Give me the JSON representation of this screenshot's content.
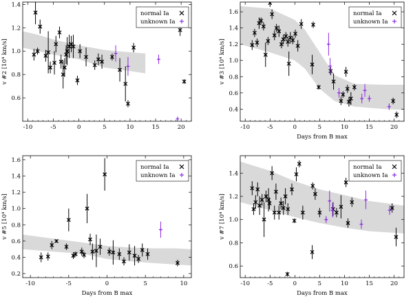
{
  "figure": {
    "background": "#ffffff",
    "band_color": "#d9d9d9",
    "normal_color": "#000000",
    "unknown_color": "#8a2be2"
  },
  "chart_data": [
    {
      "type": "scatter",
      "id": "v2",
      "ylabel": "v #2 [10⁴ km/s]",
      "xlabel": "",
      "xlim": [
        -11,
        22
      ],
      "ylim": [
        0.4,
        1.42
      ],
      "xticks": [
        -10,
        -5,
        0,
        5,
        10,
        15,
        20
      ],
      "yticks": [
        0.6,
        0.8,
        1.0,
        1.2,
        1.4
      ],
      "legend": [
        "normal Ia",
        "unknown Ia"
      ],
      "band": {
        "x": [
          -11,
          -8,
          -5,
          0,
          5,
          10,
          13
        ],
        "lo": [
          1.03,
          1.0,
          0.97,
          0.93,
          0.86,
          0.83,
          0.81
        ],
        "hi": [
          1.17,
          1.14,
          1.1,
          1.05,
          1.01,
          0.99,
          0.98
        ]
      },
      "normal": [
        {
          "x": -8.8,
          "y": 0.97,
          "e": 0.05
        },
        {
          "x": -8.5,
          "y": 1.33,
          "e": 0.1
        },
        {
          "x": -8.1,
          "y": 1.0,
          "e": 0.03
        },
        {
          "x": -7.6,
          "y": 1.21,
          "e": 0.06
        },
        {
          "x": -6.5,
          "y": 0.96,
          "e": 0.05
        },
        {
          "x": -6.0,
          "y": 0.99,
          "e": 0.18
        },
        {
          "x": -5.6,
          "y": 0.86,
          "e": 0.05
        },
        {
          "x": -4.8,
          "y": 0.9,
          "e": 0.1
        },
        {
          "x": -4.5,
          "y": 1.06,
          "e": 0.07
        },
        {
          "x": -3.8,
          "y": 1.16,
          "e": 0.05
        },
        {
          "x": -3.5,
          "y": 0.91,
          "e": 0.06
        },
        {
          "x": -3.1,
          "y": 0.8,
          "e": 0.12
        },
        {
          "x": -2.8,
          "y": 0.86,
          "e": 0.08
        },
        {
          "x": -2.5,
          "y": 0.97,
          "e": 0.08
        },
        {
          "x": -2.3,
          "y": 1.0,
          "e": 0.12
        },
        {
          "x": -1.9,
          "y": 1.04,
          "e": 0.1
        },
        {
          "x": -1.5,
          "y": 1.06,
          "e": 0.07
        },
        {
          "x": -1.1,
          "y": 1.04,
          "e": 0.1
        },
        {
          "x": -0.3,
          "y": 0.75,
          "e": 0.04
        },
        {
          "x": 0.2,
          "y": 1.0,
          "e": 0.06
        },
        {
          "x": 1.4,
          "y": 0.95,
          "e": 0.08
        },
        {
          "x": 3.1,
          "y": 0.88,
          "e": 0.04
        },
        {
          "x": 3.8,
          "y": 0.93,
          "e": 0.05
        },
        {
          "x": 4.5,
          "y": 0.91,
          "e": 0.06
        },
        {
          "x": 6.5,
          "y": 0.95,
          "e": 0.03
        },
        {
          "x": 8.0,
          "y": 0.84,
          "e": 0.1
        },
        {
          "x": 9.1,
          "y": 0.72,
          "e": 0.15
        },
        {
          "x": 9.6,
          "y": 0.55,
          "e": 0.03
        },
        {
          "x": 10.7,
          "y": 1.03,
          "e": 0.04
        },
        {
          "x": 19.8,
          "y": 1.18,
          "e": 0.05
        },
        {
          "x": 20.6,
          "y": 0.74,
          "e": 0.02
        }
      ],
      "unknown": [
        {
          "x": 7.2,
          "y": 0.98,
          "e": 0.07
        },
        {
          "x": 9.6,
          "y": 0.87,
          "e": 0.08
        },
        {
          "x": 15.6,
          "y": 0.93,
          "e": 0.04
        },
        {
          "x": 19.3,
          "y": 0.42,
          "e": 0.02
        }
      ]
    },
    {
      "type": "scatter",
      "id": "v3",
      "ylabel": "v #3 [10⁴ km/s]",
      "xlabel": "Days from B max",
      "xlim": [
        -11,
        22
      ],
      "ylim": [
        0.25,
        1.72
      ],
      "xticks": [
        -10,
        -5,
        0,
        5,
        10,
        15,
        20
      ],
      "yticks": [
        0.4,
        0.6,
        0.8,
        1.0,
        1.2,
        1.4,
        1.6
      ],
      "legend": [
        "normal Ia",
        "unknown Ia"
      ],
      "band": {
        "x": [
          -11,
          -5,
          0,
          2,
          5,
          8,
          12,
          18,
          22
        ],
        "lo": [
          1.2,
          1.1,
          1.0,
          0.9,
          0.65,
          0.5,
          0.43,
          0.4,
          0.39
        ],
        "hi": [
          1.67,
          1.64,
          1.5,
          1.38,
          1.1,
          0.82,
          0.71,
          0.7,
          0.7
        ]
      },
      "normal": [
        {
          "x": -8.6,
          "y": 1.19,
          "e": 0.06
        },
        {
          "x": -8.1,
          "y": 1.34,
          "e": 0.05
        },
        {
          "x": -7.6,
          "y": 1.22,
          "e": 0.05
        },
        {
          "x": -7.2,
          "y": 1.46,
          "e": 0.07
        },
        {
          "x": -6.8,
          "y": 1.49,
          "e": 0.04
        },
        {
          "x": -6.3,
          "y": 1.42,
          "e": 0.05
        },
        {
          "x": -5.9,
          "y": 1.07,
          "e": 0.15
        },
        {
          "x": -5.4,
          "y": 1.24,
          "e": 0.05
        },
        {
          "x": -5.0,
          "y": 1.71,
          "e": 0.05
        },
        {
          "x": -4.6,
          "y": 1.57,
          "e": 0.06
        },
        {
          "x": -4.1,
          "y": 1.31,
          "e": 0.06
        },
        {
          "x": -3.7,
          "y": 1.4,
          "e": 0.05
        },
        {
          "x": -3.2,
          "y": 1.36,
          "e": 0.07
        },
        {
          "x": -2.7,
          "y": 1.2,
          "e": 0.05
        },
        {
          "x": -2.3,
          "y": 1.26,
          "e": 0.06
        },
        {
          "x": -1.8,
          "y": 1.3,
          "e": 0.05
        },
        {
          "x": -1.4,
          "y": 1.23,
          "e": 0.06
        },
        {
          "x": -0.9,
          "y": 1.28,
          "e": 0.07
        },
        {
          "x": -0.4,
          "y": 1.25,
          "e": 0.05
        },
        {
          "x": 0.1,
          "y": 1.33,
          "e": 0.05
        },
        {
          "x": 0.6,
          "y": 1.18,
          "e": 0.07
        },
        {
          "x": 1.3,
          "y": 1.45,
          "e": 0.06
        },
        {
          "x": -1.2,
          "y": 0.96,
          "e": 0.15
        },
        {
          "x": 3.5,
          "y": 0.95,
          "e": 0.12
        },
        {
          "x": 3.7,
          "y": 1.44,
          "e": 0.04
        },
        {
          "x": 4.8,
          "y": 0.67,
          "e": 0.03
        },
        {
          "x": 7.2,
          "y": 0.87,
          "e": 0.05
        },
        {
          "x": 7.8,
          "y": 0.74,
          "e": 0.1
        },
        {
          "x": 9.3,
          "y": 0.5,
          "e": 0.05
        },
        {
          "x": 9.7,
          "y": 0.58,
          "e": 0.04
        },
        {
          "x": 10.3,
          "y": 0.86,
          "e": 0.06
        },
        {
          "x": 10.6,
          "y": 0.65,
          "e": 0.05
        },
        {
          "x": 10.9,
          "y": 0.49,
          "e": 0.06
        },
        {
          "x": 11.3,
          "y": 0.53,
          "e": 0.08
        },
        {
          "x": 12.0,
          "y": 0.67,
          "e": 0.04
        },
        {
          "x": 19.8,
          "y": 0.5,
          "e": 0.04
        },
        {
          "x": 20.5,
          "y": 0.33,
          "e": 0.04
        }
      ],
      "unknown": [
        {
          "x": 6.8,
          "y": 1.2,
          "e": 0.14
        },
        {
          "x": 7.1,
          "y": 0.93,
          "e": 0.1
        },
        {
          "x": 8.9,
          "y": 0.6,
          "e": 0.06
        },
        {
          "x": 13.5,
          "y": 0.53,
          "e": 0.06
        },
        {
          "x": 14.1,
          "y": 0.63,
          "e": 0.08
        },
        {
          "x": 15.0,
          "y": 0.53,
          "e": 0.04
        },
        {
          "x": 19.0,
          "y": 0.43,
          "e": 0.04
        }
      ]
    },
    {
      "type": "scatter",
      "id": "v5",
      "ylabel": "v #5 [10⁴ km/s]",
      "xlabel": "Days from B max",
      "xlim": [
        -11,
        11
      ],
      "ylim": [
        0.15,
        1.65
      ],
      "xticks": [
        -10,
        -5,
        0,
        5,
        10
      ],
      "yticks": [
        0.2,
        0.4,
        0.6,
        0.8,
        1.0,
        1.2,
        1.4,
        1.6
      ],
      "legend": [
        "normal Ia",
        "unknown Ia"
      ],
      "band": {
        "x": [
          -11,
          -7,
          -3,
          0,
          3,
          6,
          9,
          11
        ],
        "lo": [
          0.5,
          0.47,
          0.44,
          0.38,
          0.35,
          0.33,
          0.31,
          0.3
        ],
        "hi": [
          0.68,
          0.63,
          0.58,
          0.54,
          0.52,
          0.51,
          0.51,
          0.5
        ]
      },
      "normal": [
        {
          "x": -8.6,
          "y": 0.4,
          "e": 0.06
        },
        {
          "x": -7.7,
          "y": 0.41,
          "e": 0.05
        },
        {
          "x": -7.2,
          "y": 0.55,
          "e": 0.05
        },
        {
          "x": -6.6,
          "y": 0.6,
          "e": 0.02
        },
        {
          "x": -5.3,
          "y": 0.53,
          "e": 0.04
        },
        {
          "x": -5.0,
          "y": 0.86,
          "e": 0.14
        },
        {
          "x": -4.4,
          "y": 0.42,
          "e": 0.04
        },
        {
          "x": -4.1,
          "y": 0.44,
          "e": 0.03
        },
        {
          "x": -3.3,
          "y": 0.47,
          "e": 0.05
        },
        {
          "x": -3.0,
          "y": 0.43,
          "e": 0.04
        },
        {
          "x": -2.6,
          "y": 1.0,
          "e": 0.18
        },
        {
          "x": -2.2,
          "y": 0.62,
          "e": 0.07
        },
        {
          "x": -1.9,
          "y": 0.47,
          "e": 0.1
        },
        {
          "x": -1.4,
          "y": 0.48,
          "e": 0.2
        },
        {
          "x": -0.9,
          "y": 0.53,
          "e": 0.1
        },
        {
          "x": -0.3,
          "y": 1.42,
          "e": 0.2
        },
        {
          "x": 0.3,
          "y": 0.47,
          "e": 0.05
        },
        {
          "x": 0.8,
          "y": 0.46,
          "e": 0.15
        },
        {
          "x": 1.6,
          "y": 0.44,
          "e": 0.07
        },
        {
          "x": 2.2,
          "y": 0.35,
          "e": 0.05
        },
        {
          "x": 2.9,
          "y": 0.46,
          "e": 0.1
        },
        {
          "x": 3.6,
          "y": 0.42,
          "e": 0.12
        },
        {
          "x": 4.1,
          "y": 0.38,
          "e": 0.05
        },
        {
          "x": 4.6,
          "y": 0.49,
          "e": 0.08
        },
        {
          "x": 5.3,
          "y": 0.44,
          "e": 0.07
        },
        {
          "x": 9.2,
          "y": 0.33,
          "e": 0.04
        }
      ],
      "unknown": [
        {
          "x": 7.0,
          "y": 0.74,
          "e": 0.1
        }
      ]
    },
    {
      "type": "scatter",
      "id": "v7",
      "ylabel": "v #7 [10⁴ km/s]",
      "xlabel": "Days from B max",
      "xlim": [
        -11,
        22
      ],
      "ylim": [
        0.5,
        1.55
      ],
      "xticks": [
        -10,
        -5,
        0,
        5,
        10,
        15,
        20
      ],
      "yticks": [
        0.6,
        0.8,
        1.0,
        1.2,
        1.4
      ],
      "legend": [
        "normal Ia",
        "unknown Ia"
      ],
      "band": {
        "x": [
          -11,
          -5,
          0,
          5,
          10,
          15,
          22
        ],
        "lo": [
          1.15,
          1.08,
          1.02,
          0.97,
          0.93,
          0.9,
          0.88
        ],
        "hi": [
          1.5,
          1.42,
          1.33,
          1.26,
          1.21,
          1.16,
          1.12
        ]
      },
      "normal": [
        {
          "x": -8.6,
          "y": 1.27,
          "e": 0.06
        },
        {
          "x": -8.3,
          "y": 1.09,
          "e": 0.05
        },
        {
          "x": -7.9,
          "y": 1.15,
          "e": 0.06
        },
        {
          "x": -7.5,
          "y": 1.26,
          "e": 0.06
        },
        {
          "x": -7.1,
          "y": 1.12,
          "e": 0.08
        },
        {
          "x": -6.6,
          "y": 1.17,
          "e": 0.05
        },
        {
          "x": -6.2,
          "y": 1.0,
          "e": 0.15
        },
        {
          "x": -5.8,
          "y": 1.2,
          "e": 0.05
        },
        {
          "x": -5.3,
          "y": 1.17,
          "e": 0.1
        },
        {
          "x": -5.1,
          "y": 1.14,
          "e": 0.05
        },
        {
          "x": -4.6,
          "y": 1.4,
          "e": 0.06
        },
        {
          "x": -4.1,
          "y": 1.06,
          "e": 0.06
        },
        {
          "x": -3.8,
          "y": 1.24,
          "e": 0.07
        },
        {
          "x": -3.2,
          "y": 1.06,
          "e": 0.06
        },
        {
          "x": -2.8,
          "y": 1.14,
          "e": 0.05
        },
        {
          "x": -2.3,
          "y": 1.1,
          "e": 0.06
        },
        {
          "x": -1.9,
          "y": 1.2,
          "e": 0.07
        },
        {
          "x": -1.4,
          "y": 1.09,
          "e": 0.05
        },
        {
          "x": -0.6,
          "y": 1.26,
          "e": 0.05
        },
        {
          "x": -0.1,
          "y": 0.99,
          "e": 0.02
        },
        {
          "x": 0.3,
          "y": 1.39,
          "e": 0.06
        },
        {
          "x": 0.9,
          "y": 1.48,
          "e": 0.03
        },
        {
          "x": -1.5,
          "y": 0.53,
          "e": 0.02
        },
        {
          "x": 1.6,
          "y": 1.06,
          "e": 0.06
        },
        {
          "x": 3.5,
          "y": 0.72,
          "e": 0.06
        },
        {
          "x": 3.6,
          "y": 1.29,
          "e": 0.03
        },
        {
          "x": 4.1,
          "y": 1.22,
          "e": 0.05
        },
        {
          "x": 5.0,
          "y": 1.06,
          "e": 0.04
        },
        {
          "x": 7.7,
          "y": 1.09,
          "e": 0.06
        },
        {
          "x": 8.4,
          "y": 1.06,
          "e": 0.04
        },
        {
          "x": 9.3,
          "y": 1.11,
          "e": 0.1
        },
        {
          "x": 10.3,
          "y": 1.32,
          "e": 0.04
        },
        {
          "x": 10.7,
          "y": 0.97,
          "e": 0.04
        },
        {
          "x": 11.5,
          "y": 1.15,
          "e": 0.04
        },
        {
          "x": 19.6,
          "y": 1.1,
          "e": 0.04
        },
        {
          "x": 20.4,
          "y": 0.85,
          "e": 0.08
        }
      ],
      "unknown": [
        {
          "x": 6.3,
          "y": 1.0,
          "e": 0.03
        },
        {
          "x": 7.0,
          "y": 1.16,
          "e": 0.09
        },
        {
          "x": 7.6,
          "y": 1.08,
          "e": 0.06
        },
        {
          "x": 13.4,
          "y": 0.96,
          "e": 0.04
        },
        {
          "x": 14.3,
          "y": 1.17,
          "e": 0.08
        },
        {
          "x": 19.1,
          "y": 1.08,
          "e": 0.04
        }
      ]
    }
  ]
}
